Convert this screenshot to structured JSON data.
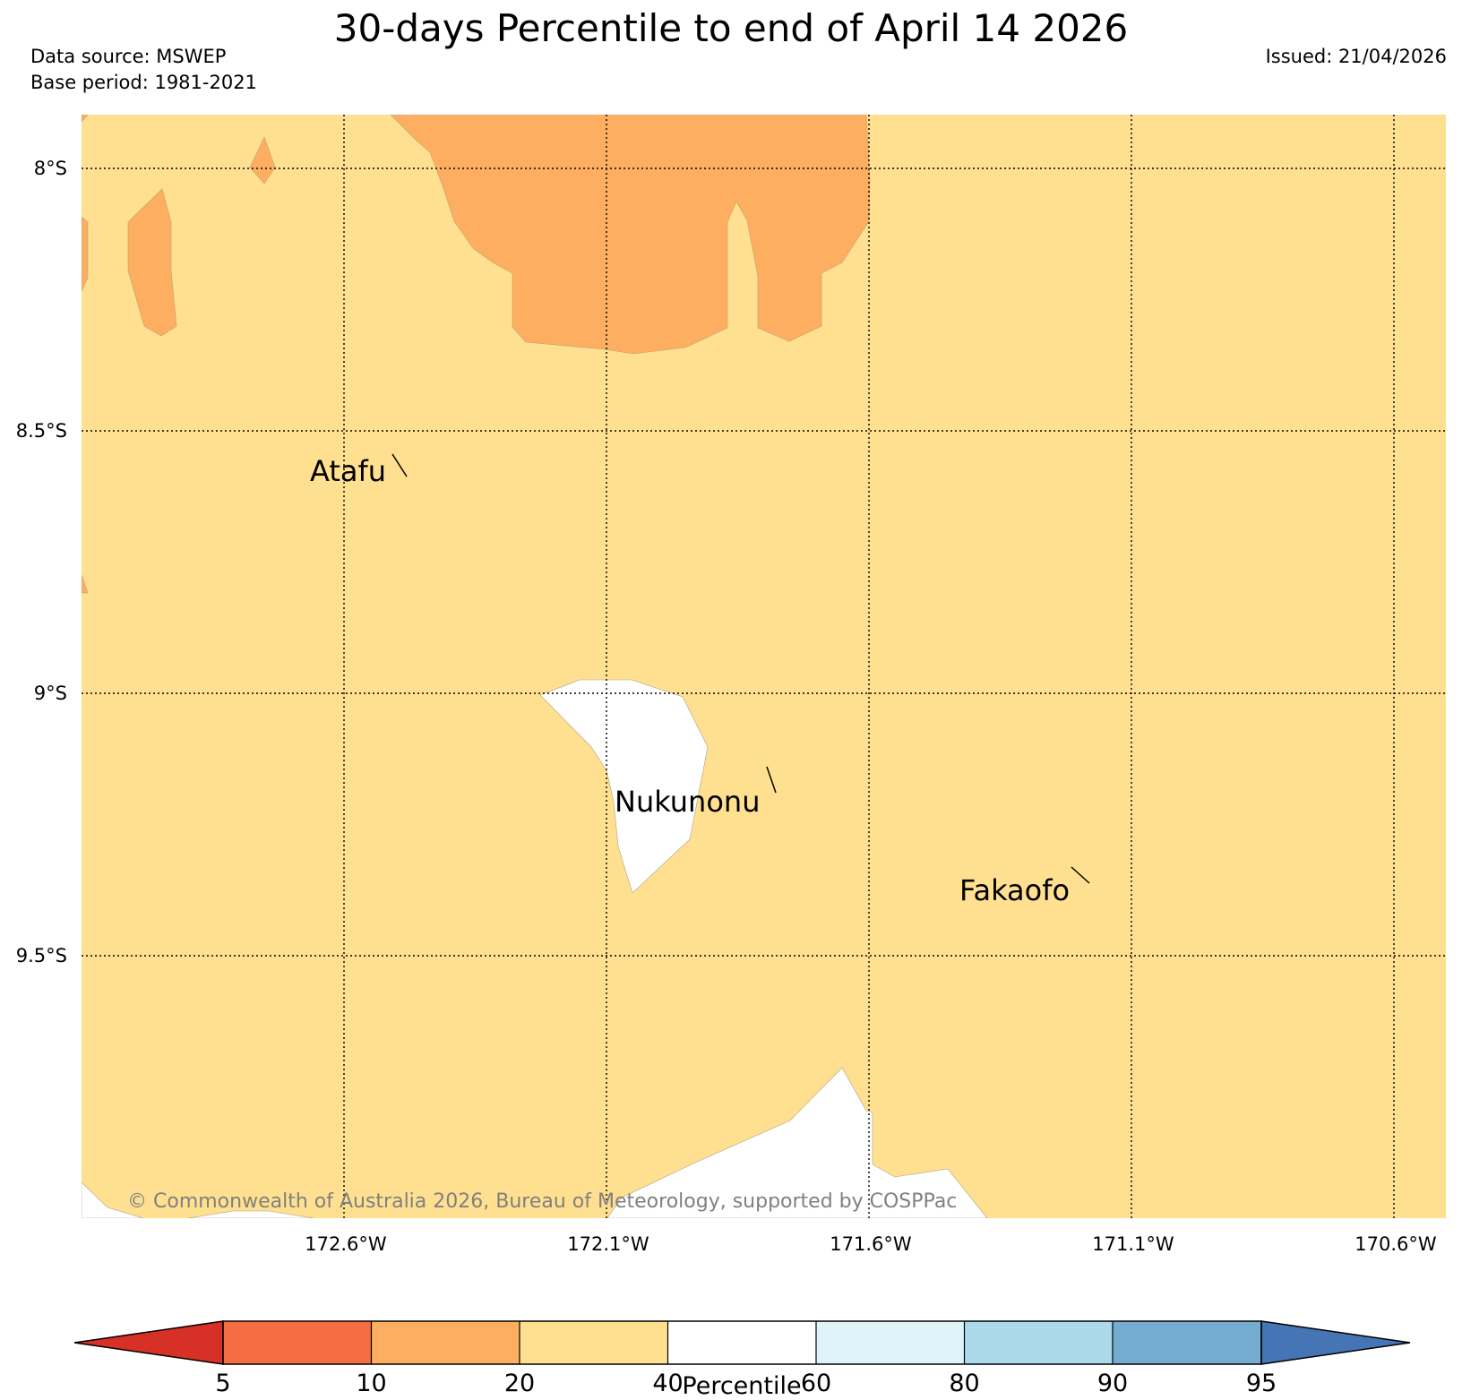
{
  "header": {
    "title": "30-days Percentile to end of April 14 2026",
    "source": "Data source: MSWEP",
    "base_period": "Base period: 1981-2021",
    "issued": "Issued: 21/04/2026"
  },
  "map": {
    "lat_labels": [
      "8°S",
      "8.5°S",
      "9°S",
      "9.5°S"
    ],
    "lon_labels": [
      "172.6°W",
      "172.1°W",
      "171.6°W",
      "171.1°W",
      "170.6°W"
    ],
    "background_category": "20-40",
    "islands": [
      {
        "name": "Atafu"
      },
      {
        "name": "Nukunonu"
      },
      {
        "name": "Fakaofo"
      }
    ],
    "copyright": "© Commonwealth of Australia 2026, Bureau of Meteorology, supported by COSPPac"
  },
  "colorbar": {
    "label": "Percentile",
    "ticks": [
      "5",
      "10",
      "20",
      "40",
      "60",
      "80",
      "90",
      "95"
    ],
    "colors": {
      "below_5": "#d73027",
      "5_10": "#f46d43",
      "10_20": "#fdae61",
      "20_40": "#fee090",
      "40_60": "#ffffff",
      "60_80": "#e0f3f8",
      "80_90": "#abd9e9",
      "90_95": "#74add1",
      "above_95": "#4575b4"
    }
  }
}
